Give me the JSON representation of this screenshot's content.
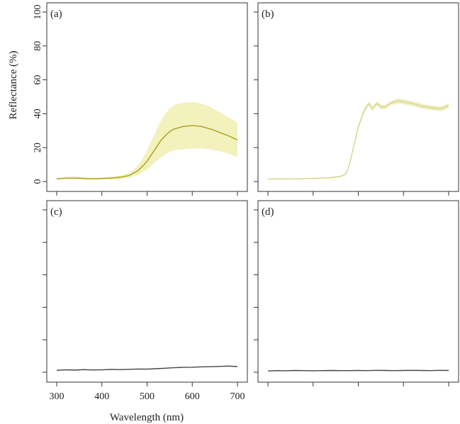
{
  "figure": {
    "ylabel": "Reflectance (%)",
    "xlabel": "Wavelength (nm)"
  },
  "chart_data": [
    {
      "type": "line",
      "panel_label": "(a)",
      "xlim": [
        300,
        700
      ],
      "ylim": [
        0,
        100
      ],
      "x_ticks": [
        300,
        400,
        500,
        600,
        700
      ],
      "y_ticks": [
        0,
        20,
        40,
        60,
        80,
        100
      ],
      "x_tick_labels_shown": false,
      "y_tick_labels_shown": true,
      "series": [
        {
          "line_color": "#a8a020",
          "band_color": "#f1efb0",
          "x": [
            300,
            320,
            340,
            360,
            380,
            400,
            420,
            440,
            460,
            470,
            480,
            490,
            500,
            510,
            520,
            530,
            540,
            550,
            560,
            580,
            600,
            620,
            640,
            660,
            680,
            700
          ],
          "values": [
            1.5,
            2,
            2,
            1.8,
            1.6,
            1.8,
            2,
            2.5,
            3.5,
            5,
            6.5,
            9,
            12,
            16,
            20,
            24,
            27,
            29.5,
            31,
            32.5,
            33,
            32.5,
            31,
            29,
            27,
            24.5
          ],
          "lower": [
            1,
            1.5,
            1.5,
            1.2,
            1,
            1.2,
            1.3,
            1.6,
            2.2,
            3,
            4,
            5.5,
            7,
            9.5,
            12,
            14,
            16,
            17.5,
            18.5,
            19,
            19.5,
            19.5,
            19,
            18,
            16.5,
            14.5
          ],
          "upper": [
            2,
            2.8,
            3,
            2.6,
            2.3,
            2.5,
            2.8,
            3.5,
            5,
            7,
            9.5,
            13.5,
            18.5,
            24,
            30,
            35.5,
            40,
            43,
            45,
            46.5,
            47,
            46,
            44,
            41,
            38,
            34.5
          ]
        }
      ]
    },
    {
      "type": "line",
      "panel_label": "(b)",
      "xlim": [
        300,
        700
      ],
      "ylim": [
        0,
        100
      ],
      "x_ticks": [
        300,
        400,
        500,
        600,
        700
      ],
      "y_ticks": [
        0,
        20,
        40,
        60,
        80,
        100
      ],
      "x_tick_labels_shown": false,
      "y_tick_labels_shown": false,
      "series": [
        {
          "line_color": "#d6d68a",
          "band_color": "#ecebb8",
          "x": [
            300,
            320,
            340,
            360,
            380,
            400,
            420,
            440,
            460,
            470,
            475,
            480,
            485,
            490,
            500,
            510,
            520,
            525,
            530,
            535,
            540,
            545,
            550,
            560,
            570,
            580,
            590,
            600,
            620,
            640,
            660,
            680,
            690,
            700
          ],
          "values": [
            1.5,
            1.5,
            1.5,
            1.6,
            1.7,
            1.8,
            2,
            2.3,
            3,
            4,
            6,
            10,
            15,
            21,
            32,
            40,
            45,
            46,
            43,
            44,
            46,
            45.5,
            44,
            44,
            46,
            47,
            47.5,
            47,
            46,
            44.5,
            43.5,
            43,
            43.5,
            45
          ],
          "lower": [
            1.2,
            1.2,
            1.2,
            1.3,
            1.4,
            1.5,
            1.7,
            1.9,
            2.6,
            3.5,
            5.4,
            9.2,
            14,
            20,
            30.8,
            38.8,
            43.8,
            44.8,
            41.8,
            42.8,
            44.8,
            44.3,
            42.8,
            42.8,
            44.8,
            45.6,
            46,
            45.5,
            44.6,
            43.1,
            42.1,
            41.6,
            42.1,
            43.6
          ],
          "upper": [
            1.8,
            1.8,
            1.8,
            1.9,
            2,
            2.1,
            2.3,
            2.7,
            3.4,
            4.5,
            6.6,
            10.8,
            16,
            22,
            33.2,
            41.2,
            46.2,
            47.2,
            44.2,
            45.2,
            47.2,
            46.7,
            45.2,
            45.2,
            47.2,
            48.4,
            49,
            48.5,
            47.4,
            45.9,
            44.9,
            44.4,
            44.9,
            46.4
          ]
        }
      ]
    },
    {
      "type": "line",
      "panel_label": "(c)",
      "xlim": [
        300,
        700
      ],
      "ylim": [
        0,
        100
      ],
      "x_ticks": [
        300,
        400,
        500,
        600,
        700
      ],
      "y_ticks": [
        0,
        20,
        40,
        60,
        80,
        100
      ],
      "x_tick_labels_shown": true,
      "y_tick_labels_shown": false,
      "series": [
        {
          "line_color": "#444444",
          "x": [
            300,
            320,
            340,
            360,
            380,
            400,
            420,
            440,
            460,
            480,
            500,
            520,
            540,
            560,
            580,
            600,
            620,
            640,
            660,
            680,
            700
          ],
          "values": [
            1.2,
            1.5,
            1.3,
            1.6,
            1.4,
            1.5,
            1.7,
            1.6,
            1.8,
            2.0,
            1.9,
            2.2,
            2.5,
            2.8,
            3.0,
            3.1,
            3.3,
            3.4,
            3.6,
            3.8,
            3.5
          ]
        }
      ]
    },
    {
      "type": "line",
      "panel_label": "(d)",
      "xlim": [
        300,
        700
      ],
      "ylim": [
        0,
        100
      ],
      "x_ticks": [
        300,
        400,
        500,
        600,
        700
      ],
      "y_ticks": [
        0,
        20,
        40,
        60,
        80,
        100
      ],
      "x_tick_labels_shown": false,
      "y_tick_labels_shown": false,
      "series": [
        {
          "line_color": "#444444",
          "x": [
            300,
            320,
            340,
            360,
            380,
            400,
            420,
            440,
            460,
            480,
            500,
            520,
            540,
            560,
            580,
            600,
            620,
            640,
            660,
            680,
            700
          ],
          "values": [
            0.8,
            1.0,
            0.9,
            1.1,
            1.0,
            0.9,
            1.0,
            1.1,
            1.0,
            1.0,
            1.1,
            1.0,
            1.2,
            1.1,
            1.0,
            1.1,
            1.2,
            1.1,
            1.0,
            1.2,
            1.1
          ]
        }
      ]
    }
  ]
}
